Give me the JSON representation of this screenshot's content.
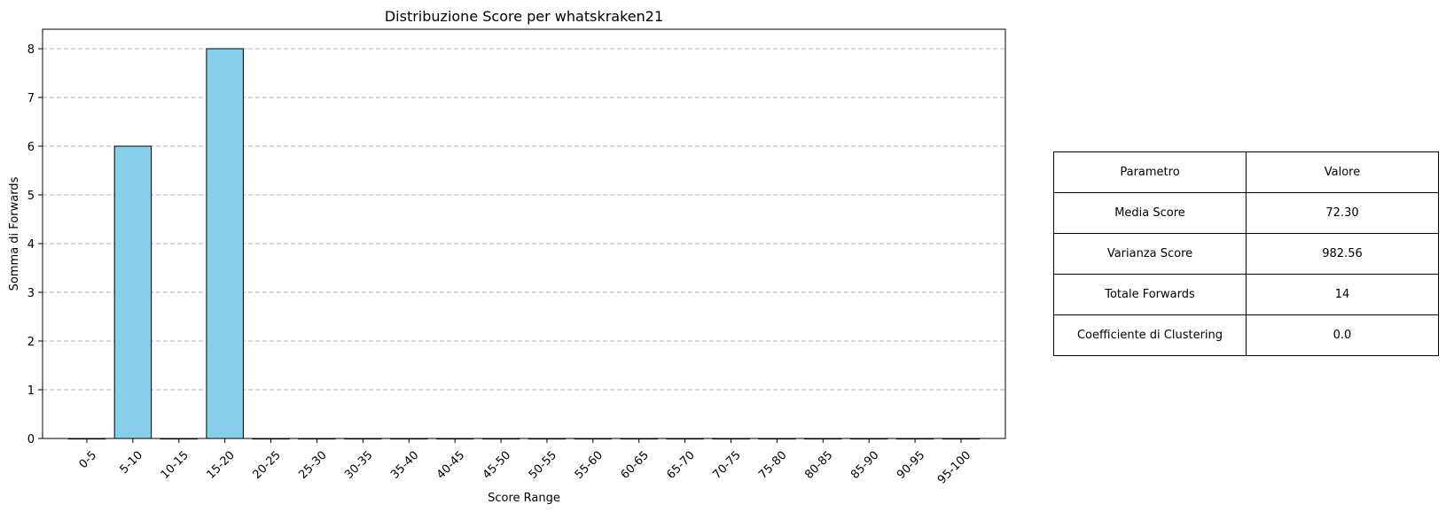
{
  "chart_data": {
    "type": "bar",
    "title": "Distribuzione Score per whatskraken21",
    "xlabel": "Score Range",
    "ylabel": "Somma di Forwards",
    "categories": [
      "0-5",
      "5-10",
      "10-15",
      "15-20",
      "20-25",
      "25-30",
      "30-35",
      "35-40",
      "40-45",
      "45-50",
      "50-55",
      "55-60",
      "60-65",
      "65-70",
      "70-75",
      "75-80",
      "80-85",
      "85-90",
      "90-95",
      "95-100"
    ],
    "values": [
      0,
      6,
      0,
      8,
      0,
      0,
      0,
      0,
      0,
      0,
      0,
      0,
      0,
      0,
      0,
      0,
      0,
      0,
      0,
      0
    ],
    "ylim": [
      0,
      8.4
    ],
    "yticks": [
      0,
      1,
      2,
      3,
      4,
      5,
      6,
      7,
      8
    ],
    "grid": "y-dashed",
    "bar_color": "#87CEEB",
    "edge_color": "#000000"
  },
  "table": {
    "header": [
      "Parametro",
      "Valore"
    ],
    "rows": [
      [
        "Media Score",
        "72.30"
      ],
      [
        "Varianza Score",
        "982.56"
      ],
      [
        "Totale Forwards",
        "14"
      ],
      [
        "Coefficiente di Clustering",
        "0.0"
      ]
    ]
  }
}
